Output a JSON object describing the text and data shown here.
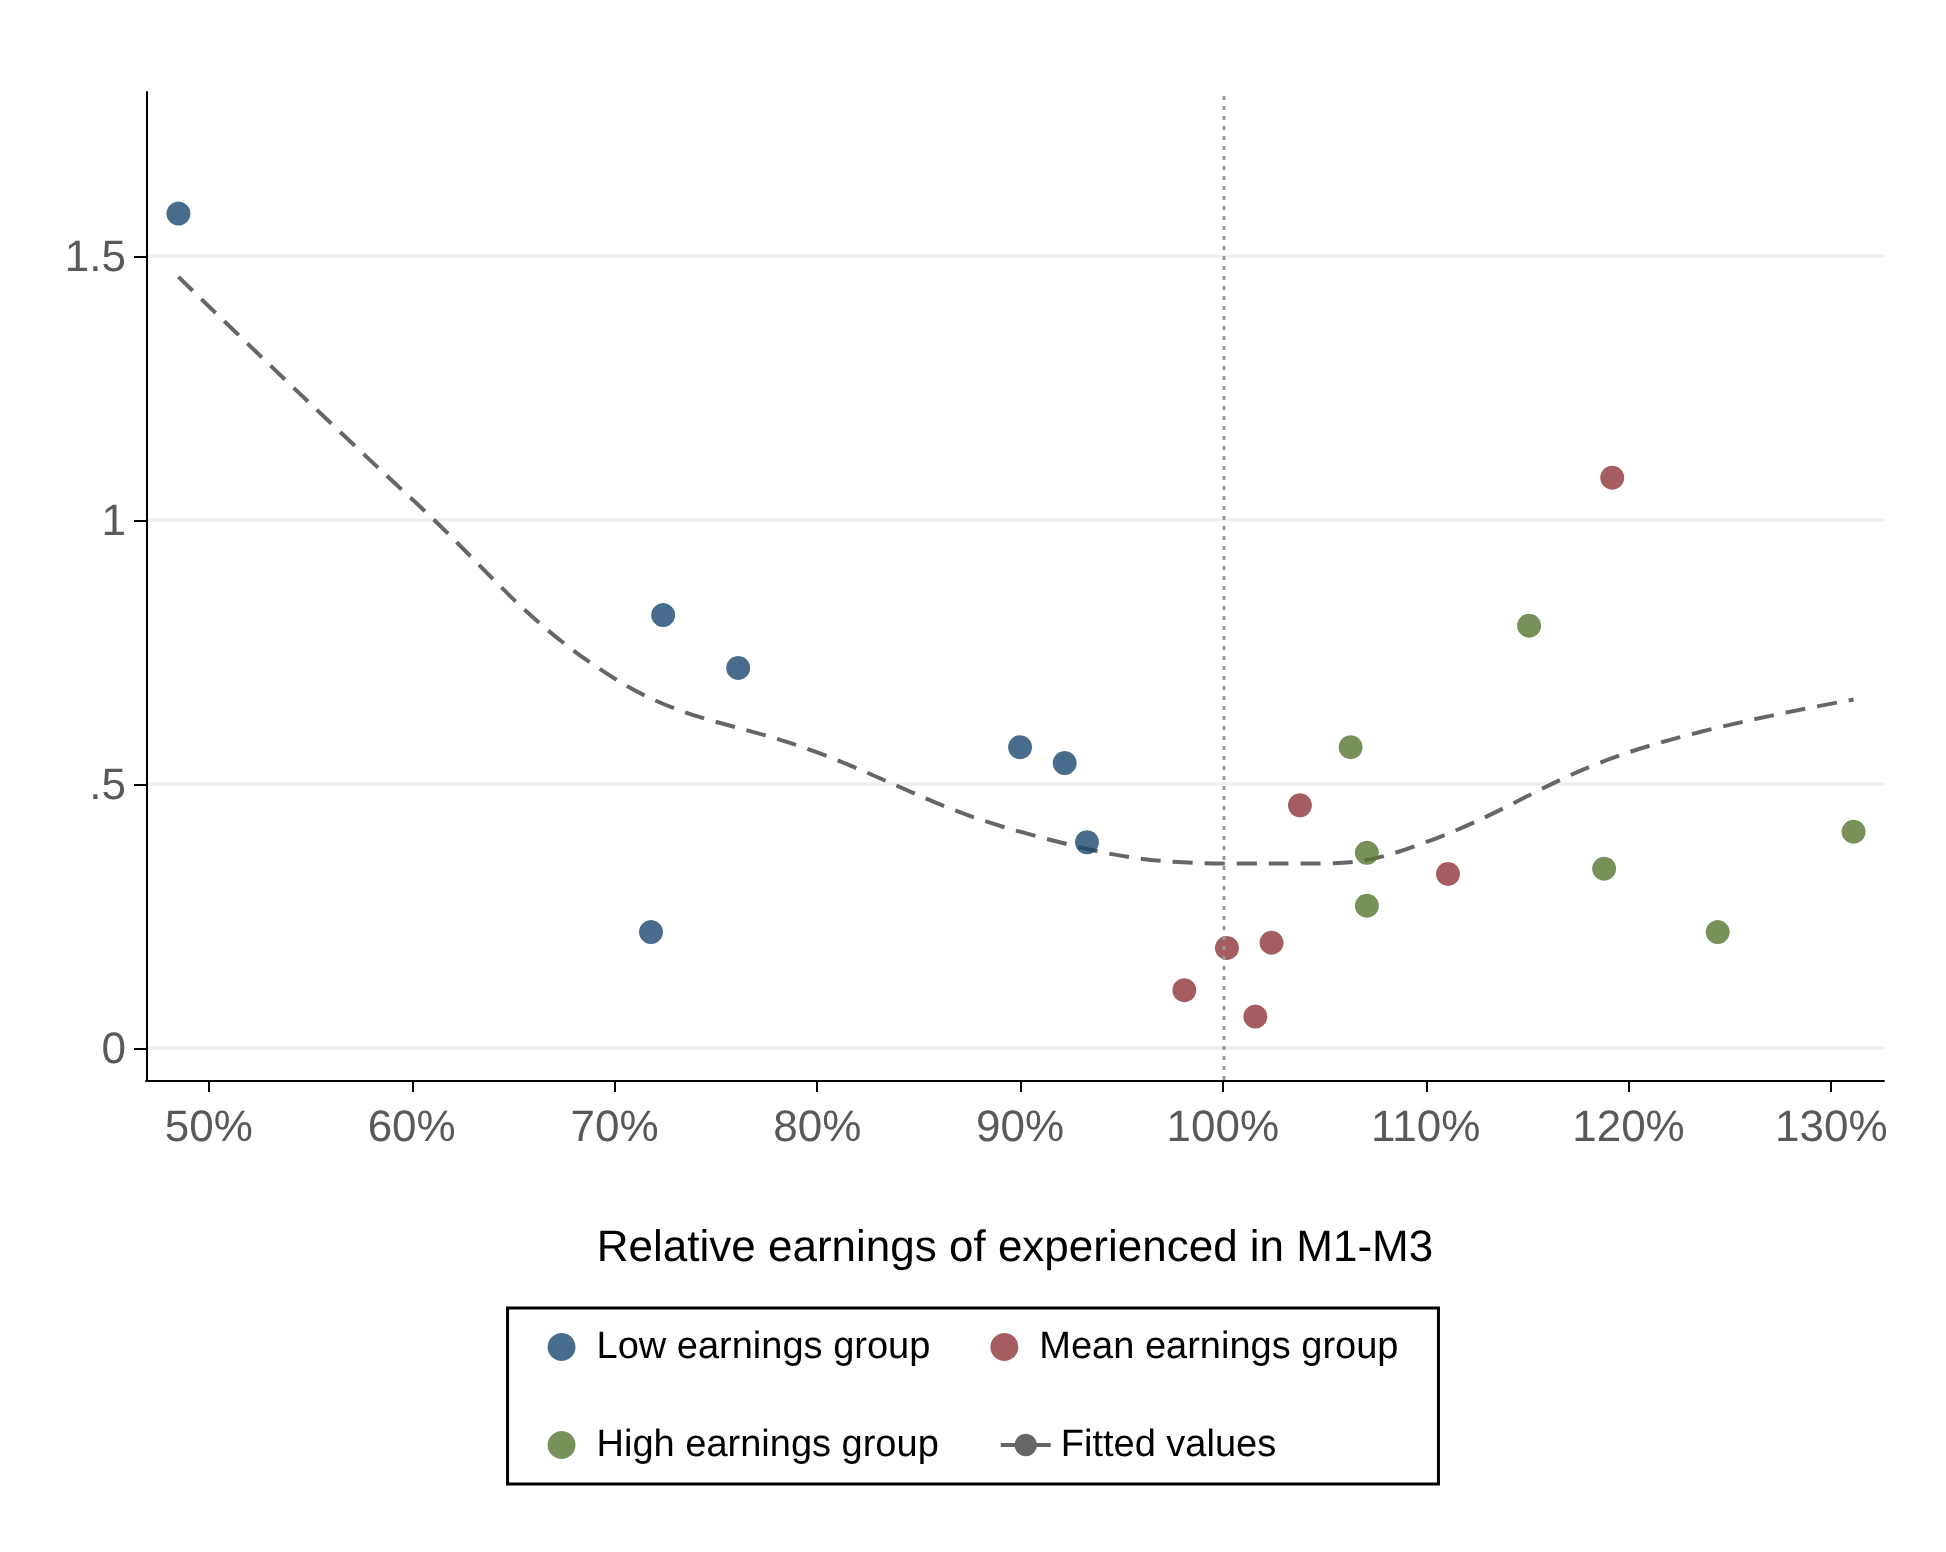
{
  "chart_data": {
    "type": "scatter",
    "xlabel": "Relative earnings of experienced in M1-M3",
    "xlim": [
      46.9,
      132.6
    ],
    "ylim": [
      -0.06,
      1.81
    ],
    "xticks": [
      {
        "value": 50,
        "label": "50%"
      },
      {
        "value": 60,
        "label": "60%"
      },
      {
        "value": 70,
        "label": "70%"
      },
      {
        "value": 80,
        "label": "80%"
      },
      {
        "value": 90,
        "label": "90%"
      },
      {
        "value": 100,
        "label": "100%"
      },
      {
        "value": 110,
        "label": "110%"
      },
      {
        "value": 120,
        "label": "120%"
      },
      {
        "value": 130,
        "label": "130%"
      }
    ],
    "yticks": [
      0,
      {
        "value": 0.5,
        "label": ".5"
      },
      1,
      1.5
    ],
    "grid": "y",
    "legend": "bottom",
    "marker": "circle",
    "ref_lines": [
      {
        "axis": "x",
        "value": 100,
        "label": null,
        "line_style": "dotted",
        "color": "#999999"
      }
    ],
    "series": [
      {
        "name": "Low earnings group",
        "color": "#1a476f",
        "x": [
          48.5,
          71.8,
          72.4,
          76.1,
          90.0,
          92.2,
          93.3
        ],
        "values": [
          1.58,
          0.22,
          0.82,
          0.72,
          0.57,
          0.54,
          0.39
        ]
      },
      {
        "name": "Mean earnings group",
        "color": "#90353b",
        "x": [
          98.1,
          100.2,
          101.6,
          102.4,
          103.8,
          111.1,
          119.2
        ],
        "values": [
          0.11,
          0.19,
          0.06,
          0.2,
          0.46,
          0.33,
          1.08
        ]
      },
      {
        "name": "High earnings group",
        "color": "#55752f",
        "x": [
          106.3,
          107.1,
          107.1,
          115.1,
          118.8,
          124.4,
          131.1
        ],
        "values": [
          0.57,
          0.37,
          0.27,
          0.8,
          0.34,
          0.22,
          0.41
        ]
      },
      {
        "name": "Fitted values",
        "type": "line",
        "marker": "none",
        "line_style": "dashed",
        "color": "#666666",
        "x": [
          48.5,
          60,
          70,
          80,
          90,
          100,
          105,
          110,
          120,
          131.1
        ],
        "values": [
          1.46,
          1.04,
          0.7,
          0.56,
          0.41,
          0.35,
          0.35,
          0.39,
          0.56,
          0.66
        ]
      }
    ]
  }
}
